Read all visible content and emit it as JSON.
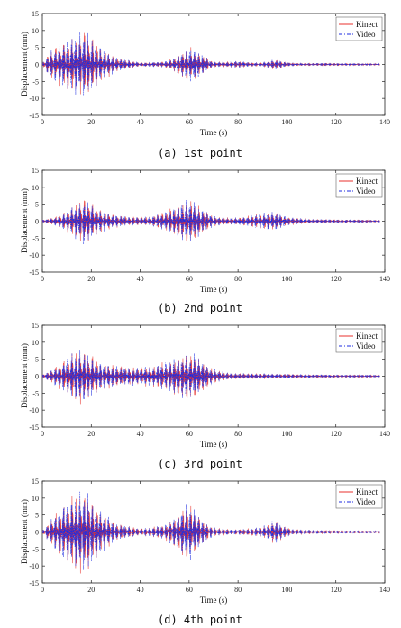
{
  "colors": {
    "kinect": "#e8322d",
    "video": "#1f2ee0",
    "axis": "#222222"
  },
  "panels": [
    {
      "caption": "(a) 1st point"
    },
    {
      "caption": "(b) 2nd point"
    },
    {
      "caption": "(c) 3rd point"
    },
    {
      "caption": "(d) 4th point"
    }
  ],
  "chart_data": [
    {
      "type": "line",
      "xlabel": "Time (s)",
      "ylabel": "Displacement (mm)",
      "xlim": [
        0,
        140
      ],
      "ylim": [
        -15,
        15
      ],
      "xticks": [
        0,
        20,
        40,
        60,
        80,
        100,
        120,
        140
      ],
      "yticks": [
        15,
        10,
        5,
        0,
        -5,
        -10,
        -15
      ],
      "legend_position": "top-right",
      "series": [
        {
          "name": "Kinect",
          "style": "solid"
        },
        {
          "name": "Video",
          "style": "dash-dot"
        }
      ],
      "envelope": {
        "x": [
          0,
          3,
          6,
          10,
          14,
          18,
          20,
          24,
          30,
          40,
          50,
          54,
          58,
          60,
          62,
          66,
          70,
          75,
          80,
          85,
          90,
          95,
          98,
          100,
          104,
          110,
          120,
          130,
          138
        ],
        "y": [
          0.3,
          3.5,
          5.5,
          7,
          8.5,
          9.5,
          8,
          5,
          2,
          0.6,
          0.8,
          2,
          4,
          5,
          4.5,
          2.5,
          0.8,
          0.8,
          1,
          0.6,
          0.6,
          1.5,
          1,
          0.6,
          0.4,
          0.4,
          0.4,
          0.3,
          0.2
        ]
      }
    },
    {
      "type": "line",
      "xlabel": "Time (s)",
      "ylabel": "Displacement (mm)",
      "xlim": [
        0,
        140
      ],
      "ylim": [
        -15,
        15
      ],
      "xticks": [
        0,
        20,
        40,
        60,
        80,
        100,
        120,
        140
      ],
      "yticks": [
        15,
        10,
        5,
        0,
        -5,
        -10,
        -15
      ],
      "legend_position": "top-right",
      "series": [
        {
          "name": "Kinect",
          "style": "solid"
        },
        {
          "name": "Video",
          "style": "dash-dot"
        }
      ],
      "envelope": {
        "x": [
          0,
          4,
          8,
          12,
          16,
          18,
          22,
          28,
          36,
          44,
          50,
          55,
          58,
          60,
          62,
          66,
          70,
          76,
          82,
          88,
          92,
          96,
          100,
          110,
          120,
          130,
          138
        ],
        "y": [
          0.3,
          1,
          2,
          4,
          6,
          7,
          4,
          2,
          1.2,
          1.3,
          2.5,
          4.5,
          6,
          6.5,
          5.5,
          3,
          1.5,
          1,
          1.2,
          2,
          2.5,
          2.5,
          1.2,
          0.6,
          0.5,
          0.4,
          0.3
        ]
      }
    },
    {
      "type": "line",
      "xlabel": "Time (s)",
      "ylabel": "Displacement (mm)",
      "xlim": [
        0,
        140
      ],
      "ylim": [
        -15,
        15
      ],
      "xticks": [
        0,
        20,
        40,
        60,
        80,
        100,
        120,
        140
      ],
      "yticks": [
        15,
        10,
        5,
        0,
        -5,
        -10,
        -15
      ],
      "legend_position": "top-right",
      "series": [
        {
          "name": "Kinect",
          "style": "solid"
        },
        {
          "name": "Video",
          "style": "dash-dot"
        }
      ],
      "envelope": {
        "x": [
          0,
          4,
          8,
          12,
          16,
          20,
          24,
          30,
          38,
          46,
          52,
          56,
          60,
          62,
          66,
          70,
          76,
          82,
          90,
          100,
          110,
          120,
          130,
          138
        ],
        "y": [
          0.3,
          2,
          4,
          6.5,
          8,
          6,
          4,
          3,
          2.5,
          3,
          4.5,
          6,
          7,
          6.5,
          4,
          2,
          1,
          0.8,
          0.8,
          0.6,
          0.5,
          0.4,
          0.4,
          0.3
        ]
      }
    },
    {
      "type": "line",
      "xlabel": "Time (s)",
      "ylabel": "Displacement (mm)",
      "xlim": [
        0,
        140
      ],
      "ylim": [
        -15,
        15
      ],
      "xticks": [
        0,
        20,
        40,
        60,
        80,
        100,
        120,
        140
      ],
      "yticks": [
        15,
        10,
        5,
        0,
        -5,
        -10,
        -15
      ],
      "legend_position": "top-right",
      "series": [
        {
          "name": "Kinect",
          "style": "solid"
        },
        {
          "name": "Video",
          "style": "dash-dot"
        }
      ],
      "envelope": {
        "x": [
          0,
          3,
          6,
          10,
          14,
          18,
          20,
          24,
          30,
          40,
          50,
          55,
          58,
          60,
          62,
          66,
          70,
          78,
          86,
          92,
          95,
          98,
          102,
          110,
          120,
          130,
          138
        ],
        "y": [
          0.3,
          3,
          6,
          9,
          11,
          12,
          10,
          6,
          2.5,
          1,
          2,
          5,
          8,
          8,
          6.5,
          3,
          1.2,
          0.8,
          1,
          2,
          3.5,
          2,
          0.8,
          0.6,
          0.5,
          0.4,
          0.3
        ]
      }
    }
  ]
}
